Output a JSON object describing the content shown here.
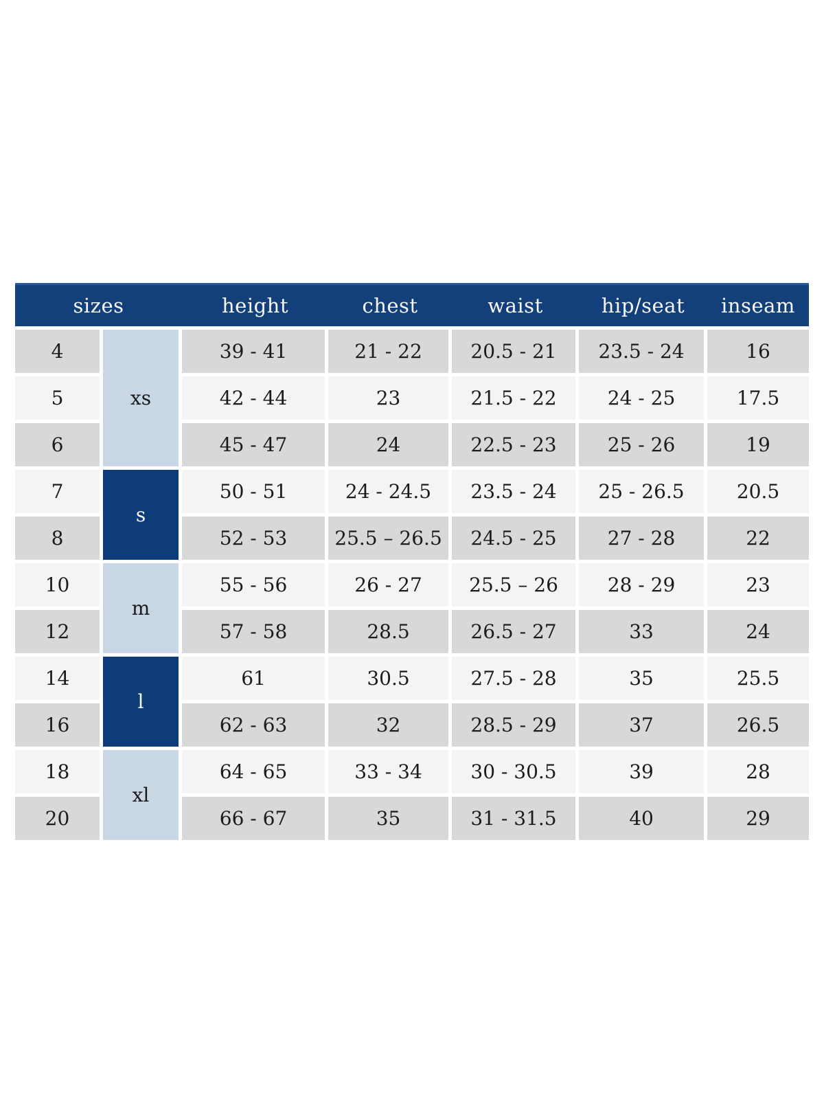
{
  "page": {
    "background_color": "#ffffff",
    "description": "children garment size chart table"
  },
  "table": {
    "headers": [
      {
        "label": "sizes",
        "colspan": 2
      },
      {
        "label": "height",
        "colspan": 1
      },
      {
        "label": "chest",
        "colspan": 1
      },
      {
        "label": "waist",
        "colspan": 1
      },
      {
        "label": "hip/seat",
        "colspan": 1
      },
      {
        "label": "inseam",
        "colspan": 1
      }
    ],
    "groups": [
      {
        "label": "xs",
        "style": "light",
        "row_span": 3
      },
      {
        "label": "s",
        "style": "dark",
        "row_span": 2
      },
      {
        "label": "m",
        "style": "light",
        "row_span": 2
      },
      {
        "label": "l",
        "style": "dark",
        "row_span": 2
      },
      {
        "label": "xl",
        "style": "light",
        "row_span": 2
      }
    ],
    "rows": [
      {
        "size": "4",
        "height": "39 - 41",
        "chest": "21 - 22",
        "waist": "20.5 - 21",
        "hip_seat": "23.5 - 24",
        "inseam": "16"
      },
      {
        "size": "5",
        "height": "42 - 44",
        "chest": "23",
        "waist": "21.5 - 22",
        "hip_seat": "24 - 25",
        "inseam": "17.5"
      },
      {
        "size": "6",
        "height": "45 - 47",
        "chest": "24",
        "waist": "22.5 - 23",
        "hip_seat": "25 - 26",
        "inseam": "19"
      },
      {
        "size": "7",
        "height": "50 - 51",
        "chest": "24 - 24.5",
        "waist": "23.5 - 24",
        "hip_seat": "25 - 26.5",
        "inseam": "20.5"
      },
      {
        "size": "8",
        "height": "52 - 53",
        "chest": "25.5 – 26.5",
        "waist": "24.5 - 25",
        "hip_seat": "27 - 28",
        "inseam": "22"
      },
      {
        "size": "10",
        "height": "55 - 56",
        "chest": "26 - 27",
        "waist": "25.5 – 26",
        "hip_seat": "28 - 29",
        "inseam": "23"
      },
      {
        "size": "12",
        "height": "57 - 58",
        "chest": "28.5",
        "waist": "26.5 - 27",
        "hip_seat": "33",
        "inseam": "24"
      },
      {
        "size": "14",
        "height": "61",
        "chest": "30.5",
        "waist": "27.5 - 28",
        "hip_seat": "35",
        "inseam": "25.5"
      },
      {
        "size": "16",
        "height": "62 - 63",
        "chest": "32",
        "waist": "28.5 - 29",
        "hip_seat": "37",
        "inseam": "26.5"
      },
      {
        "size": "18",
        "height": "64 - 65",
        "chest": "33 - 34",
        "waist": "30 - 30.5",
        "hip_seat": "39",
        "inseam": "28"
      },
      {
        "size": "20",
        "height": "66 - 67",
        "chest": "35",
        "waist": "31 - 31.5",
        "hip_seat": "40",
        "inseam": "29"
      }
    ],
    "colors": {
      "header_background": "#133f7b",
      "header_top_edge": "#2b5a99",
      "header_text": "#f7f9fc",
      "group_dark_background": "#0d3c78",
      "group_dark_text": "#f7f9fc",
      "group_light_background": "#c9d6e4",
      "row_shaded_background": "#d8d8d8",
      "row_plain_background": "#f4f4f4",
      "body_text": "#1b1b1b",
      "cell_gap": "#ffffff"
    }
  }
}
